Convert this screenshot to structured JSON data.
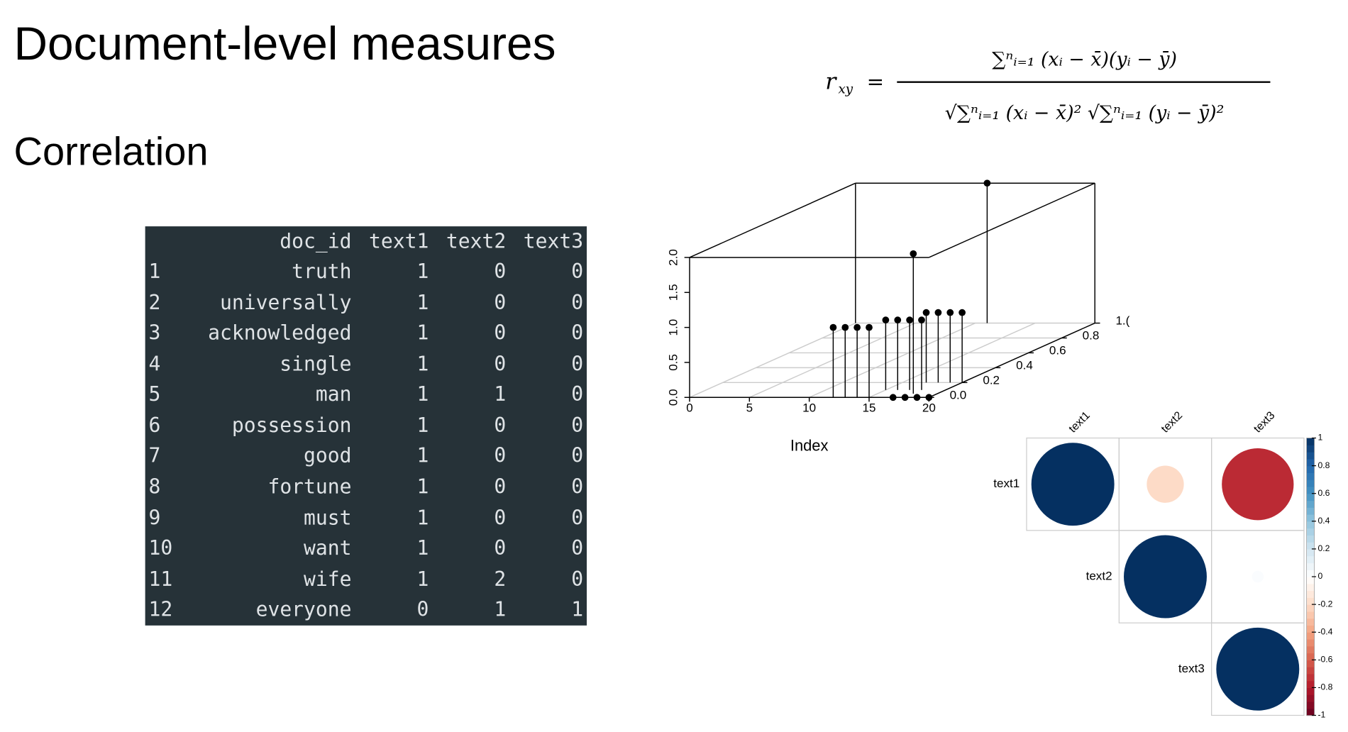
{
  "title": "Document-level measures",
  "subtitle": "Correlation",
  "formula": {
    "lhs": "r",
    "lhs_sub": "xy",
    "equals": "=",
    "numerator": "∑ⁿᵢ₌₁ (xᵢ − x̄)(yᵢ − ȳ)",
    "denominator": "√∑ⁿᵢ₌₁ (xᵢ − x̄)² √∑ⁿᵢ₌₁ (yᵢ − ȳ)²"
  },
  "table": {
    "header": [
      "doc_id",
      "text1",
      "text2",
      "text3"
    ],
    "rows": [
      [
        1,
        "truth",
        1,
        0,
        0
      ],
      [
        2,
        "universally",
        1,
        0,
        0
      ],
      [
        3,
        "acknowledged",
        1,
        0,
        0
      ],
      [
        4,
        "single",
        1,
        0,
        0
      ],
      [
        5,
        "man",
        1,
        1,
        0
      ],
      [
        6,
        "possession",
        1,
        0,
        0
      ],
      [
        7,
        "good",
        1,
        0,
        0
      ],
      [
        8,
        "fortune",
        1,
        0,
        0
      ],
      [
        9,
        "must",
        1,
        0,
        0
      ],
      [
        10,
        "want",
        1,
        0,
        0
      ],
      [
        11,
        "wife",
        1,
        2,
        0
      ],
      [
        12,
        "everyone",
        0,
        1,
        1
      ]
    ]
  },
  "chart_data": [
    {
      "type": "scatter3d",
      "xlabel": "Index",
      "xlim": [
        0,
        20
      ],
      "xticks": [
        0,
        5,
        10,
        15,
        20
      ],
      "ylim": [
        0,
        1
      ],
      "yticks": [
        {
          "value": 0,
          "label": "0.0"
        },
        0.2,
        0.4,
        0.6,
        0.8,
        {
          "value": 1,
          "label": "1.("
        }
      ],
      "zlim": [
        0,
        2
      ],
      "zticks": [
        {
          "value": 0,
          "label": "0.0"
        },
        0.5,
        {
          "value": 1,
          "label": "1.0"
        },
        1.5,
        {
          "value": 2,
          "label": "2.0"
        }
      ],
      "color": "#000000",
      "grid": true,
      "series": [
        {
          "x": [
            12,
            13,
            14,
            15,
            15,
            16,
            17,
            18,
            17,
            18,
            19,
            20,
            17,
            18,
            19,
            20,
            18,
            11
          ],
          "y": [
            0,
            0,
            0,
            0,
            0.1,
            0.1,
            0.1,
            0.1,
            0.2,
            0.2,
            0.2,
            0.2,
            0,
            0,
            0,
            0,
            0.05,
            1
          ],
          "z": [
            1,
            1,
            1,
            1,
            1,
            1,
            1,
            1,
            1,
            1,
            1,
            1,
            0,
            0,
            0,
            0,
            2,
            2
          ]
        }
      ]
    },
    {
      "type": "corrplot",
      "labels": [
        "text1",
        "text2",
        "text3"
      ],
      "values": [
        [
          1,
          -0.2,
          -0.75
        ],
        [
          null,
          1,
          0.02
        ],
        [
          null,
          null,
          1
        ]
      ],
      "colors": [
        "#67001F",
        "#B2182B",
        "#D6604D",
        "#F4A582",
        "#FDDBC7",
        "#FFFFFF",
        "#D1E5F0",
        "#92C5DE",
        "#4393C3",
        "#2166AC",
        "#053061"
      ],
      "clim": [
        -1,
        1
      ],
      "colorbar_ticks": [
        1,
        0.8,
        0.6,
        0.4,
        0.2,
        0,
        -0.2,
        -0.4,
        -0.6,
        -0.8,
        -1
      ]
    }
  ]
}
